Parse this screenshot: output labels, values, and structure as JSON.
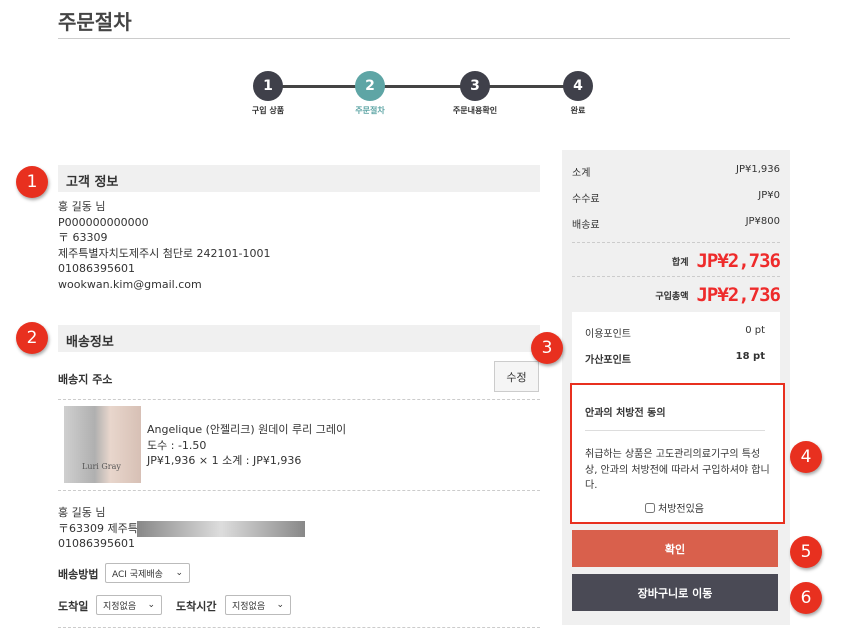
{
  "page_title": "주문절차",
  "steps": [
    {
      "num": "1",
      "label": "구입 상품"
    },
    {
      "num": "2",
      "label": "주문절차"
    },
    {
      "num": "3",
      "label": "주문내용확인"
    },
    {
      "num": "4",
      "label": "완료"
    }
  ],
  "customer": {
    "header": "고객 정보",
    "lines": [
      "홍 길동 님",
      "P000000000000",
      "〒 63309",
      "제주특별자치도제주시 첨단로 242101-1001",
      "01086395601",
      "wookwan.kim@gmail.com"
    ]
  },
  "shipping": {
    "header": "배송정보",
    "address_title": "배송지 주소",
    "edit_label": "수정",
    "product": {
      "name": "Angelique (안젤리크) 원데이 루리 그레이",
      "power": "도수 : -1.50",
      "price": "JP¥1,936 × 1  소계 : JP¥1,936",
      "image_text": "Luri Gray"
    },
    "recipient": [
      "홍 길동 님",
      "〒63309 제주특별",
      "01086395601"
    ],
    "method_label": "배송방법",
    "method_value": "ACI 국제배송",
    "date_label": "도착일",
    "date_value": "지정없음",
    "time_label": "도착시간",
    "time_value": "지정없음"
  },
  "summary": {
    "rows": [
      {
        "label": "소계",
        "value": "JP¥1,936"
      },
      {
        "label": "수수료",
        "value": "JP¥0"
      },
      {
        "label": "배송료",
        "value": "JP¥800"
      }
    ],
    "total_label": "합계",
    "total_value": "JP¥2,736",
    "purchase_label": "구입총액",
    "purchase_value": "JP¥2,736",
    "points": [
      {
        "label": "이용포인트",
        "value": "0 pt"
      },
      {
        "label": "가산포인트",
        "value": "18 pt"
      }
    ]
  },
  "consent": {
    "title": "안과의 처방전 동의",
    "text": "취급하는 상품은 고도관리의료기구의 특성상, 안과의 처방전에 따라서 구입하셔야 합니다.",
    "checkbox_label": "처방전있음",
    "checked": false
  },
  "buttons": {
    "confirm": "확인",
    "cart": "장바구니로 이동"
  },
  "annotations": [
    "1",
    "2",
    "3",
    "4",
    "5",
    "6"
  ],
  "colors": {
    "accent": "#5ea5a5",
    "confirm": "#d9604c",
    "cart": "#4a4a55",
    "price": "#ee2b2b",
    "annotation": "#e8301f"
  }
}
